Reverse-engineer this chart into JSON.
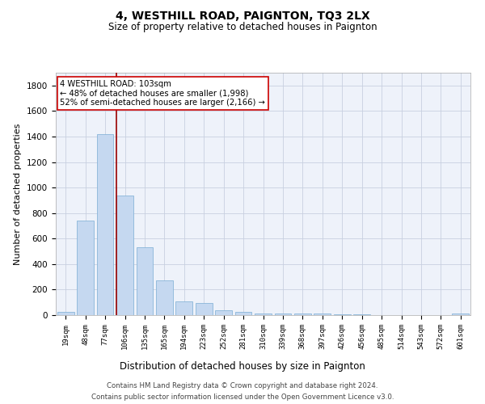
{
  "title": "4, WESTHILL ROAD, PAIGNTON, TQ3 2LX",
  "subtitle": "Size of property relative to detached houses in Paignton",
  "xlabel": "Distribution of detached houses by size in Paignton",
  "ylabel": "Number of detached properties",
  "bar_color": "#c5d8f0",
  "bar_edge_color": "#7aadd4",
  "grid_color": "#c8d0e0",
  "background_color": "#eef2fa",
  "categories": [
    "19sqm",
    "48sqm",
    "77sqm",
    "106sqm",
    "135sqm",
    "165sqm",
    "194sqm",
    "223sqm",
    "252sqm",
    "281sqm",
    "310sqm",
    "339sqm",
    "368sqm",
    "397sqm",
    "426sqm",
    "456sqm",
    "485sqm",
    "514sqm",
    "543sqm",
    "572sqm",
    "601sqm"
  ],
  "values": [
    25,
    740,
    1420,
    940,
    530,
    270,
    105,
    95,
    40,
    25,
    15,
    15,
    10,
    10,
    5,
    5,
    2,
    2,
    2,
    2,
    15
  ],
  "ylim": [
    0,
    1900
  ],
  "yticks": [
    0,
    200,
    400,
    600,
    800,
    1000,
    1200,
    1400,
    1600,
    1800
  ],
  "vline_color": "#990000",
  "annotation_line1": "4 WESTHILL ROAD: 103sqm",
  "annotation_line2": "← 48% of detached houses are smaller (1,998)",
  "annotation_line3": "52% of semi-detached houses are larger (2,166) →",
  "annotation_box_color": "#ffffff",
  "annotation_box_edge_color": "#cc0000",
  "footer_line1": "Contains HM Land Registry data © Crown copyright and database right 2024.",
  "footer_line2": "Contains public sector information licensed under the Open Government Licence v3.0."
}
